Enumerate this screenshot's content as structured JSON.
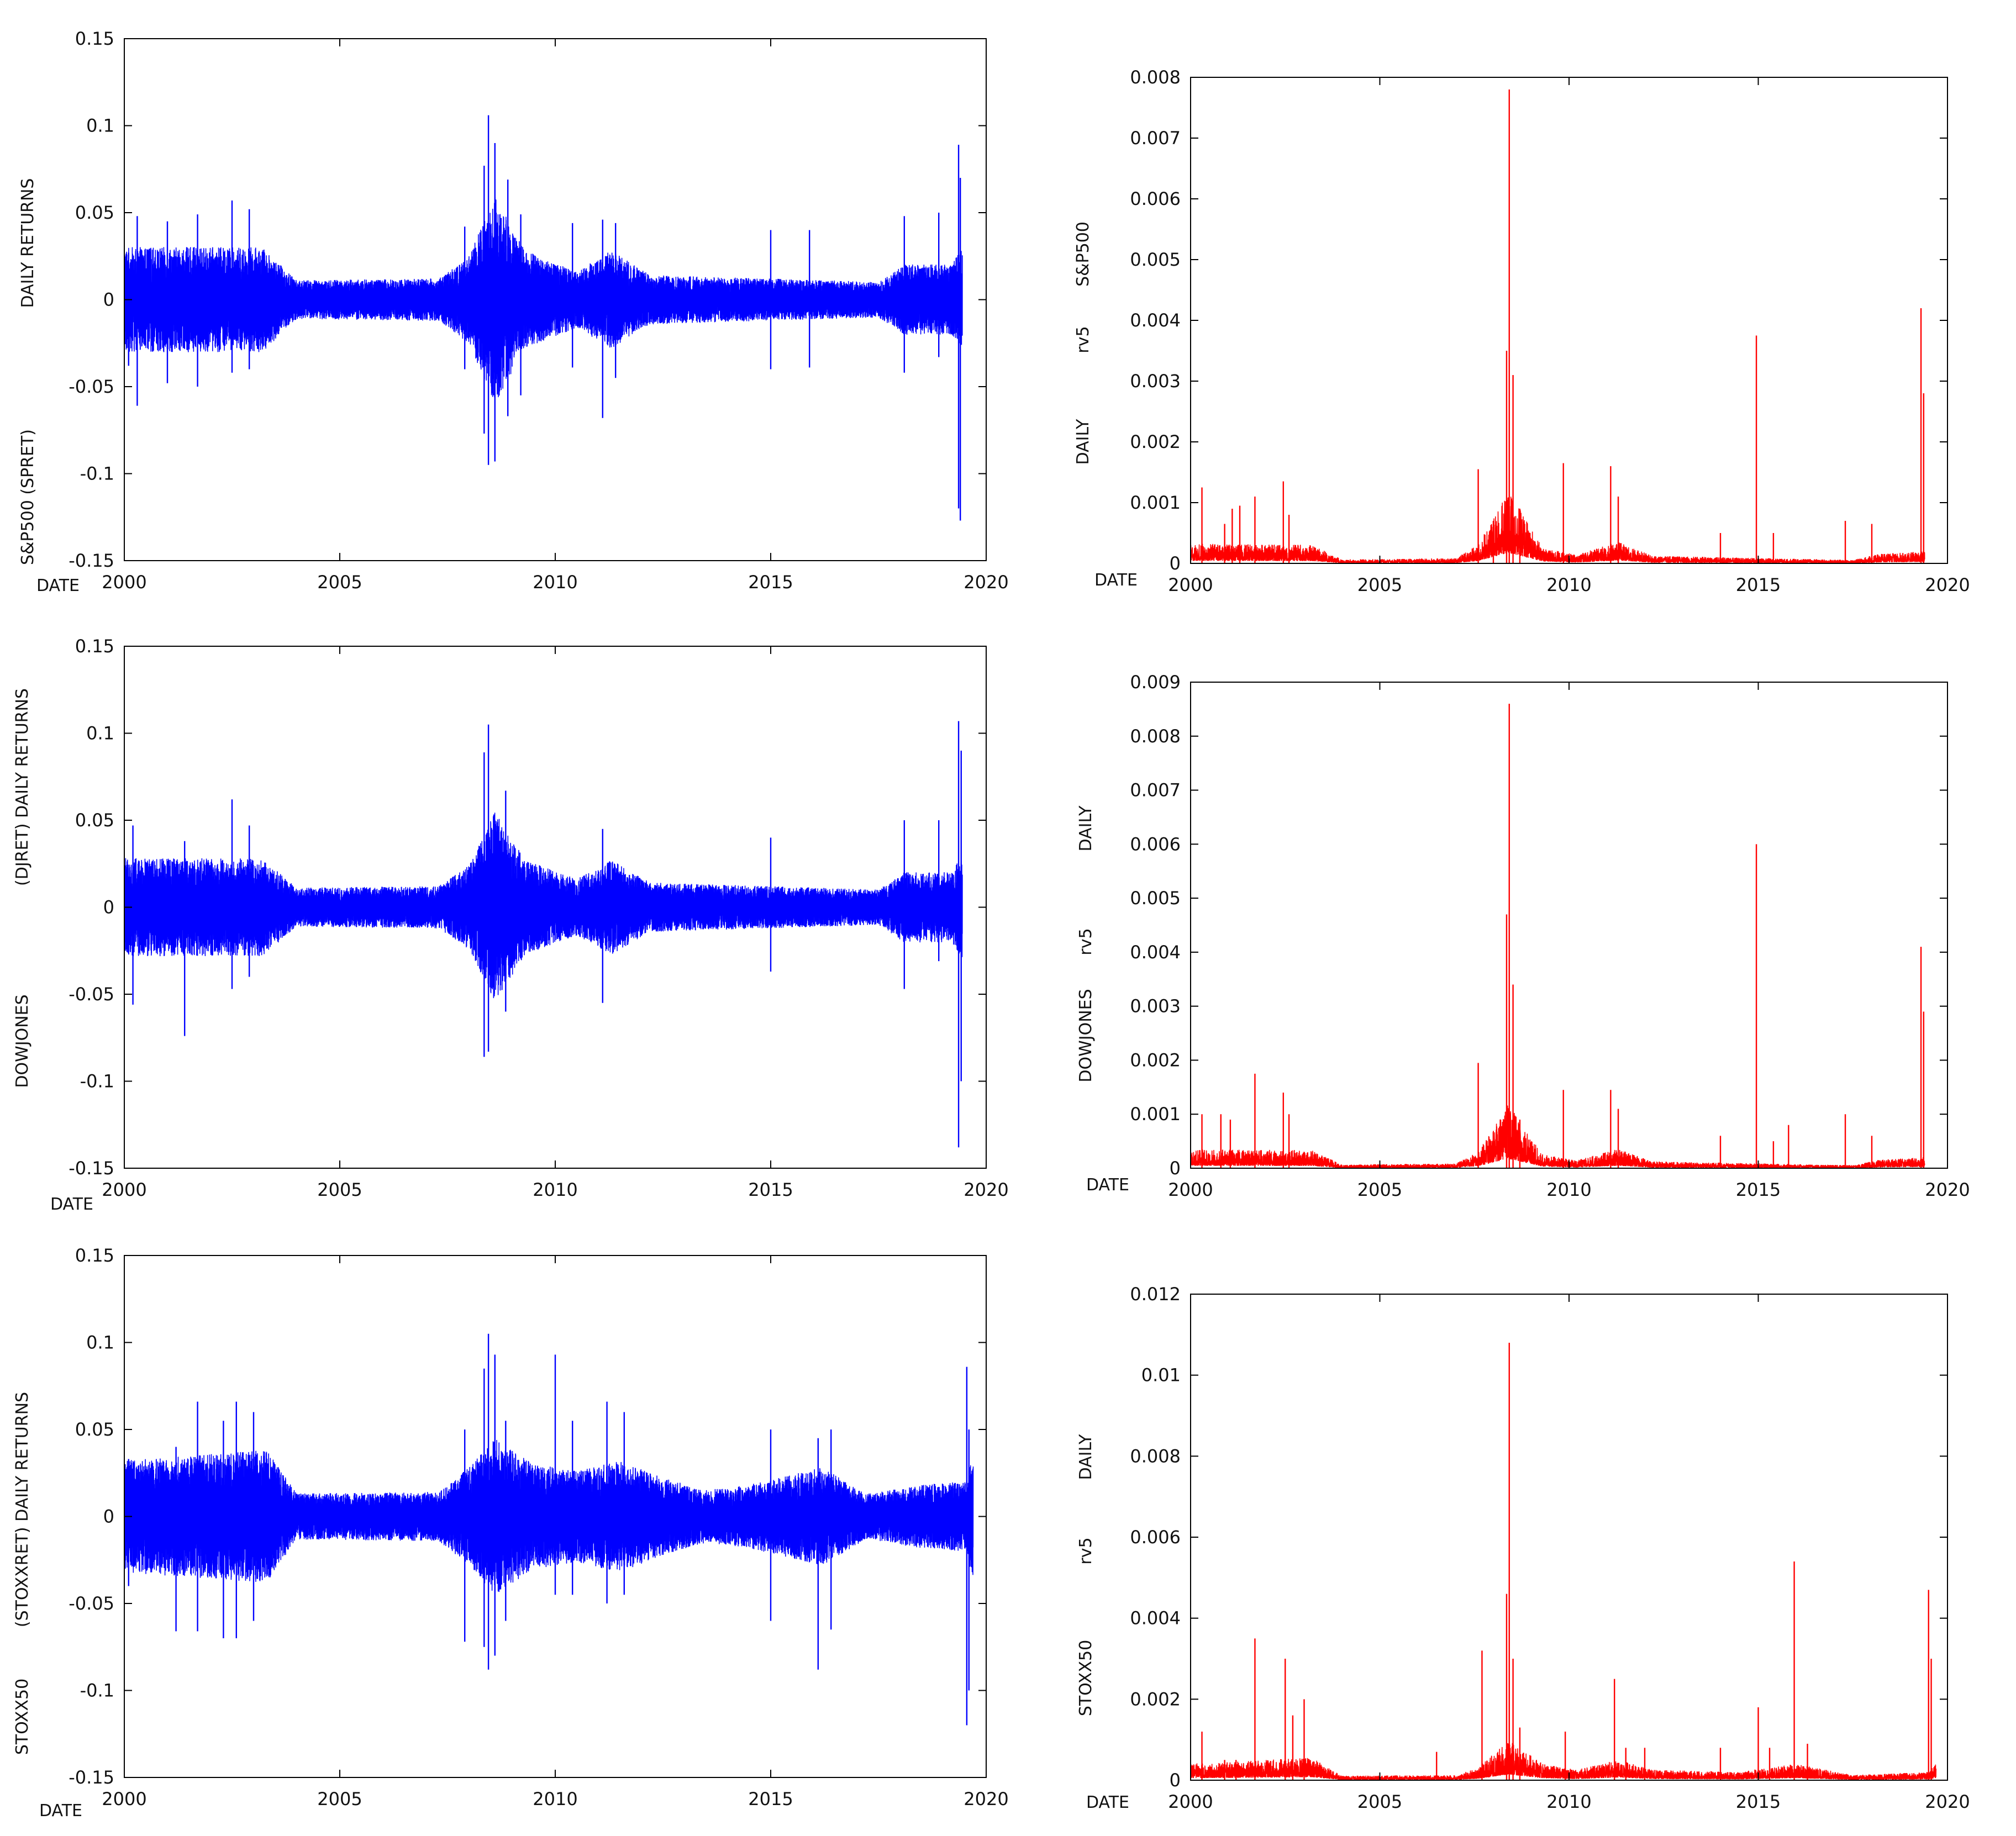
{
  "colors": {
    "returns": "#0000ff",
    "rv5": "#ff0000",
    "axis": "#000000"
  },
  "charts": [
    {
      "id": "spret",
      "chart_data": {
        "type": "line",
        "xlabel": "DATE",
        "ylabel_parts": [
          "S&P500 (SPRET)",
          "DAILY RETURNS"
        ],
        "xlim": [
          2000,
          2020
        ],
        "ylim": [
          -0.15,
          0.15
        ],
        "xticks": [
          "2000",
          "2005",
          "2010",
          "2015",
          "2020"
        ],
        "yticks": [
          "-0.15",
          "-0.1",
          "-0.05",
          "0",
          "0.05",
          "0.1",
          "0.15"
        ],
        "series": [
          {
            "color": "#0000ff",
            "end": 2019.45
          }
        ],
        "spikes": [
          [
            2000.1,
            0.027,
            -0.038
          ],
          [
            2000.3,
            0.048,
            -0.061
          ],
          [
            2001.0,
            0.045,
            -0.048
          ],
          [
            2001.7,
            0.049,
            -0.05
          ],
          [
            2002.5,
            0.057,
            -0.042
          ],
          [
            2002.9,
            0.052,
            -0.04
          ],
          [
            2007.9,
            0.042,
            -0.04
          ],
          [
            2008.35,
            0.077,
            -0.077
          ],
          [
            2008.45,
            0.106,
            -0.095
          ],
          [
            2008.6,
            0.09,
            -0.093
          ],
          [
            2008.9,
            0.069,
            -0.067
          ],
          [
            2009.2,
            0.049,
            -0.055
          ],
          [
            2010.4,
            0.044,
            -0.039
          ],
          [
            2011.1,
            0.046,
            -0.068
          ],
          [
            2011.4,
            0.044,
            -0.045
          ],
          [
            2015.0,
            0.04,
            -0.04
          ],
          [
            2015.9,
            0.04,
            -0.039
          ],
          [
            2018.1,
            0.048,
            -0.042
          ],
          [
            2018.9,
            0.05,
            -0.033
          ],
          [
            2019.36,
            0.089,
            -0.12
          ],
          [
            2019.4,
            0.07,
            -0.127
          ]
        ],
        "envelope": [
          [
            2000,
            0.03
          ],
          [
            2003.2,
            0.03
          ],
          [
            2004,
            0.011
          ],
          [
            2007.3,
            0.012
          ],
          [
            2008.0,
            0.025
          ],
          [
            2008.6,
            0.06
          ],
          [
            2009.3,
            0.028
          ],
          [
            2010.5,
            0.016
          ],
          [
            2011.3,
            0.028
          ],
          [
            2012.2,
            0.014
          ],
          [
            2017.5,
            0.01
          ],
          [
            2018.1,
            0.02
          ],
          [
            2019.2,
            0.02
          ],
          [
            2019.45,
            0.03
          ]
        ]
      }
    },
    {
      "id": "spx-rv5",
      "chart_data": {
        "type": "line",
        "xlabel": "DATE",
        "ylabel_parts": [
          "DAILY",
          "rv5",
          "S&P500"
        ],
        "xlim": [
          2000,
          2020
        ],
        "ylim": [
          0,
          0.008
        ],
        "xticks": [
          "2000",
          "2005",
          "2010",
          "2015",
          "2020"
        ],
        "yticks": [
          "0",
          "0.001",
          "0.002",
          "0.003",
          "0.004",
          "0.005",
          "0.006",
          "0.007",
          "0.008"
        ],
        "series": [
          {
            "color": "#ff0000",
            "end": 2019.4
          }
        ],
        "spikes": [
          [
            2000.3,
            0.00125
          ],
          [
            2000.9,
            0.00065
          ],
          [
            2001.1,
            0.0009
          ],
          [
            2001.3,
            0.00095
          ],
          [
            2001.7,
            0.0011
          ],
          [
            2002.45,
            0.00135
          ],
          [
            2002.6,
            0.0008
          ],
          [
            2007.6,
            0.00155
          ],
          [
            2008.0,
            0.0007
          ],
          [
            2008.35,
            0.0035
          ],
          [
            2008.42,
            0.0078
          ],
          [
            2008.52,
            0.0031
          ],
          [
            2008.7,
            0.0009
          ],
          [
            2009.85,
            0.00165
          ],
          [
            2011.1,
            0.0016
          ],
          [
            2011.3,
            0.0011
          ],
          [
            2014.0,
            0.0005
          ],
          [
            2014.95,
            0.00375
          ],
          [
            2015.4,
            0.0005
          ],
          [
            2017.3,
            0.0007
          ],
          [
            2018.0,
            0.00065
          ],
          [
            2019.3,
            0.0042
          ],
          [
            2019.37,
            0.0028
          ]
        ],
        "envelope": [
          [
            2000,
            0.00032
          ],
          [
            2003.2,
            0.0003
          ],
          [
            2004,
            6e-05
          ],
          [
            2007.0,
            8e-05
          ],
          [
            2007.6,
            0.0003
          ],
          [
            2008.4,
            0.0012
          ],
          [
            2009.3,
            0.00025
          ],
          [
            2010.2,
            0.00014
          ],
          [
            2011.3,
            0.00035
          ],
          [
            2012.2,
            0.00012
          ],
          [
            2017.5,
            5e-05
          ],
          [
            2018.2,
            0.00015
          ],
          [
            2019.4,
            0.0002
          ]
        ]
      }
    },
    {
      "id": "djret",
      "chart_data": {
        "type": "line",
        "xlabel": "DATE",
        "ylabel_parts": [
          "DOWJONES",
          "(DJRET) DAILY RETURNS"
        ],
        "xlim": [
          2000,
          2020
        ],
        "ylim": [
          -0.15,
          0.15
        ],
        "xticks": [
          "2000",
          "2005",
          "2010",
          "2015",
          "2020"
        ],
        "yticks": [
          "-0.15",
          "-0.1",
          "-0.05",
          "0",
          "0.05",
          "0.1",
          "0.15"
        ],
        "series": [
          {
            "color": "#0000ff",
            "end": 2019.45
          }
        ],
        "spikes": [
          [
            2000.2,
            0.047,
            -0.056
          ],
          [
            2001.4,
            0.038,
            -0.074
          ],
          [
            2002.5,
            0.062,
            -0.047
          ],
          [
            2002.9,
            0.047,
            -0.04
          ],
          [
            2008.35,
            0.089,
            -0.086
          ],
          [
            2008.45,
            0.105,
            -0.083
          ],
          [
            2008.85,
            0.067,
            -0.06
          ],
          [
            2011.1,
            0.045,
            -0.055
          ],
          [
            2015.0,
            0.04,
            -0.037
          ],
          [
            2018.1,
            0.05,
            -0.047
          ],
          [
            2018.9,
            0.05,
            -0.031
          ],
          [
            2019.36,
            0.107,
            -0.138
          ],
          [
            2019.42,
            0.09,
            -0.1
          ]
        ],
        "envelope": [
          [
            2000,
            0.028
          ],
          [
            2003.2,
            0.028
          ],
          [
            2004,
            0.011
          ],
          [
            2007.3,
            0.012
          ],
          [
            2008.0,
            0.024
          ],
          [
            2008.6,
            0.055
          ],
          [
            2009.3,
            0.027
          ],
          [
            2010.5,
            0.016
          ],
          [
            2011.3,
            0.027
          ],
          [
            2012.2,
            0.014
          ],
          [
            2017.5,
            0.01
          ],
          [
            2018.1,
            0.02
          ],
          [
            2019.2,
            0.02
          ],
          [
            2019.45,
            0.03
          ]
        ]
      }
    },
    {
      "id": "dj-rv5",
      "chart_data": {
        "type": "line",
        "xlabel": "DATE",
        "ylabel_parts": [
          "DOWJONES",
          "rv5",
          "DAILY"
        ],
        "xlim": [
          2000,
          2020
        ],
        "ylim": [
          0,
          0.009
        ],
        "xticks": [
          "2000",
          "2005",
          "2010",
          "2015",
          "2020"
        ],
        "yticks": [
          "0",
          "0.001",
          "0.002",
          "0.003",
          "0.004",
          "0.005",
          "0.006",
          "0.007",
          "0.008",
          "0.009"
        ],
        "series": [
          {
            "color": "#ff0000",
            "end": 2019.4
          }
        ],
        "spikes": [
          [
            2000.3,
            0.001
          ],
          [
            2000.8,
            0.001
          ],
          [
            2001.05,
            0.0009
          ],
          [
            2001.7,
            0.00175
          ],
          [
            2002.45,
            0.0014
          ],
          [
            2002.6,
            0.001
          ],
          [
            2007.6,
            0.00195
          ],
          [
            2008.35,
            0.0047
          ],
          [
            2008.42,
            0.0086
          ],
          [
            2008.52,
            0.0034
          ],
          [
            2008.7,
            0.0009
          ],
          [
            2009.85,
            0.00145
          ],
          [
            2011.1,
            0.00145
          ],
          [
            2011.3,
            0.0011
          ],
          [
            2014.0,
            0.0006
          ],
          [
            2014.95,
            0.006
          ],
          [
            2015.4,
            0.0005
          ],
          [
            2015.8,
            0.0008
          ],
          [
            2017.3,
            0.001
          ],
          [
            2018.0,
            0.0006
          ],
          [
            2019.3,
            0.0041
          ],
          [
            2019.37,
            0.0029
          ]
        ],
        "envelope": [
          [
            2000,
            0.00035
          ],
          [
            2003.2,
            0.00033
          ],
          [
            2004,
            6e-05
          ],
          [
            2007.0,
            8e-05
          ],
          [
            2007.6,
            0.0003
          ],
          [
            2008.4,
            0.0012
          ],
          [
            2009.3,
            0.00025
          ],
          [
            2010.2,
            0.00014
          ],
          [
            2011.3,
            0.00035
          ],
          [
            2012.2,
            0.00012
          ],
          [
            2017.5,
            5e-05
          ],
          [
            2018.2,
            0.00015
          ],
          [
            2019.4,
            0.0002
          ]
        ]
      }
    },
    {
      "id": "stoxxret",
      "chart_data": {
        "type": "line",
        "xlabel": "DATE",
        "ylabel_parts": [
          "STOXX50",
          "(STOXXRET) DAILY RETURNS"
        ],
        "xlim": [
          2000,
          2020
        ],
        "ylim": [
          -0.15,
          0.15
        ],
        "xticks": [
          "2000",
          "2005",
          "2010",
          "2015",
          "2020"
        ],
        "yticks": [
          "-0.15",
          "-0.1",
          "-0.05",
          "0",
          "0.05",
          "0.1",
          "0.15"
        ],
        "series": [
          {
            "color": "#0000ff",
            "end": 2019.7
          }
        ],
        "spikes": [
          [
            2000.1,
            0.033,
            -0.04
          ],
          [
            2001.2,
            0.04,
            -0.066
          ],
          [
            2001.7,
            0.066,
            -0.066
          ],
          [
            2002.3,
            0.055,
            -0.07
          ],
          [
            2002.6,
            0.066,
            -0.07
          ],
          [
            2003.0,
            0.06,
            -0.06
          ],
          [
            2007.9,
            0.05,
            -0.072
          ],
          [
            2008.35,
            0.085,
            -0.075
          ],
          [
            2008.45,
            0.105,
            -0.088
          ],
          [
            2008.6,
            0.093,
            -0.08
          ],
          [
            2008.85,
            0.055,
            -0.06
          ],
          [
            2010.0,
            0.093,
            -0.045
          ],
          [
            2010.4,
            0.055,
            -0.045
          ],
          [
            2011.2,
            0.066,
            -0.05
          ],
          [
            2011.6,
            0.06,
            -0.045
          ],
          [
            2015.0,
            0.05,
            -0.06
          ],
          [
            2016.1,
            0.045,
            -0.088
          ],
          [
            2016.4,
            0.05,
            -0.065
          ],
          [
            2019.55,
            0.086,
            -0.12
          ],
          [
            2019.6,
            0.05,
            -0.1
          ]
        ],
        "envelope": [
          [
            2000,
            0.032
          ],
          [
            2003.3,
            0.038
          ],
          [
            2004,
            0.013
          ],
          [
            2007.3,
            0.014
          ],
          [
            2008.0,
            0.028
          ],
          [
            2008.6,
            0.045
          ],
          [
            2009.5,
            0.03
          ],
          [
            2010.5,
            0.026
          ],
          [
            2011.5,
            0.032
          ],
          [
            2012.5,
            0.022
          ],
          [
            2013.5,
            0.015
          ],
          [
            2014.5,
            0.018
          ],
          [
            2016.2,
            0.028
          ],
          [
            2017.2,
            0.013
          ],
          [
            2018.5,
            0.018
          ],
          [
            2019.5,
            0.02
          ],
          [
            2019.7,
            0.035
          ]
        ]
      }
    },
    {
      "id": "stoxx-rv5",
      "chart_data": {
        "type": "line",
        "xlabel": "DATE",
        "ylabel_parts": [
          "STOXX50",
          "rv5",
          "DAILY"
        ],
        "xlim": [
          2000,
          2020
        ],
        "ylim": [
          0,
          0.012
        ],
        "xticks": [
          "2000",
          "2005",
          "2010",
          "2015",
          "2020"
        ],
        "yticks": [
          "0",
          "0.002",
          "0.004",
          "0.006",
          "0.008",
          "0.01",
          "0.012"
        ],
        "series": [
          {
            "color": "#ff0000",
            "end": 2019.7
          }
        ],
        "spikes": [
          [
            2000.3,
            0.0012
          ],
          [
            2000.9,
            0.0005
          ],
          [
            2001.2,
            0.0005
          ],
          [
            2001.7,
            0.0035
          ],
          [
            2002.5,
            0.003
          ],
          [
            2002.7,
            0.0016
          ],
          [
            2003.0,
            0.002
          ],
          [
            2006.5,
            0.0007
          ],
          [
            2007.7,
            0.0032
          ],
          [
            2008.35,
            0.0046
          ],
          [
            2008.42,
            0.0108
          ],
          [
            2008.52,
            0.003
          ],
          [
            2008.7,
            0.0013
          ],
          [
            2009.9,
            0.0012
          ],
          [
            2011.2,
            0.0025
          ],
          [
            2011.5,
            0.0008
          ],
          [
            2012.0,
            0.0008
          ],
          [
            2014.0,
            0.0008
          ],
          [
            2015.0,
            0.0018
          ],
          [
            2015.3,
            0.0008
          ],
          [
            2015.95,
            0.0054
          ],
          [
            2016.3,
            0.0009
          ],
          [
            2019.5,
            0.0047
          ],
          [
            2019.57,
            0.003
          ]
        ],
        "envelope": [
          [
            2000,
            0.0004
          ],
          [
            2003.2,
            0.00055
          ],
          [
            2004,
            0.0001
          ],
          [
            2007.0,
            0.00012
          ],
          [
            2007.6,
            0.0003
          ],
          [
            2008.4,
            0.001
          ],
          [
            2009.3,
            0.0004
          ],
          [
            2010.2,
            0.00025
          ],
          [
            2011.3,
            0.0005
          ],
          [
            2012.2,
            0.00025
          ],
          [
            2014.5,
            0.0002
          ],
          [
            2016.0,
            0.0004
          ],
          [
            2017.5,
            0.00012
          ],
          [
            2019.5,
            0.0002
          ],
          [
            2019.7,
            0.0004
          ]
        ]
      }
    }
  ]
}
